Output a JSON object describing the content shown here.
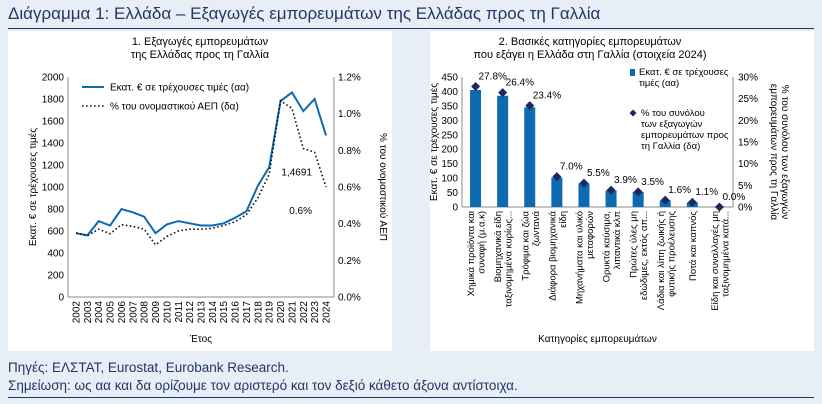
{
  "page": {
    "title": "Διάγραμμα 1: Ελλάδα – Εξαγωγές εμπορευμάτων της Ελλάδας προς τη Γαλλία",
    "source": "Πηγές: ΕΛΣΤΑΤ, Eurostat, Eurobank Research.",
    "note": "Σημείωση: ως αα και δα ορίζουμε τον αριστερό και τον δεξιό κάθετο άξονα αντίστοιχα."
  },
  "colors": {
    "primary": "#0e6ab0",
    "marker": "#1a2a5c",
    "text": "#1f3864"
  },
  "chart_data": [
    {
      "type": "line",
      "title": [
        "1. Εξαγωγές εμπορευμάτων",
        "της Ελλάδας προς τη Γαλλία"
      ],
      "xlabel": "Έτος",
      "ylabel_left": "Εκατ. € σε τρέχουσες τιμές",
      "ylabel_right": "% του ονομαστικού ΑΕΠ",
      "x": [
        "2002",
        "2003",
        "2004",
        "2005",
        "2006",
        "2007",
        "2008",
        "2009",
        "2010",
        "2011",
        "2012",
        "2013",
        "2014",
        "2015",
        "2016",
        "2017",
        "2018",
        "2019",
        "2020",
        "2021",
        "2022",
        "2023",
        "2024"
      ],
      "ylim_left": [
        0,
        2000
      ],
      "ylim_right": [
        0,
        1.2
      ],
      "yticks_left": [
        "0",
        "200",
        "400",
        "600",
        "800",
        "1000",
        "1200",
        "1400",
        "1600",
        "1800",
        "2000"
      ],
      "yticks_right": [
        "0.0%",
        "0.2%",
        "0.4%",
        "0.6%",
        "0.8%",
        "1.0%",
        "1.2%"
      ],
      "legend": "top-left",
      "series": [
        {
          "name": "Εκατ. € σε τρέχουσες τιμές (αα)",
          "axis": "left",
          "style": "solid",
          "values": [
            580,
            560,
            690,
            650,
            800,
            770,
            730,
            580,
            660,
            690,
            670,
            650,
            650,
            670,
            720,
            780,
            1010,
            1180,
            1780,
            1860,
            1690,
            1800,
            1469.1
          ]
        },
        {
          "name": "% του ονομαστικού ΑΕΠ (δα)",
          "axis": "right",
          "style": "dotted",
          "values": [
            0.35,
            0.335,
            0.37,
            0.345,
            0.395,
            0.385,
            0.37,
            0.285,
            0.33,
            0.36,
            0.37,
            0.37,
            0.375,
            0.39,
            0.41,
            0.45,
            0.54,
            0.67,
            1.07,
            1.03,
            0.81,
            0.79,
            0.6
          ]
        }
      ],
      "annotations": [
        {
          "text": "1,4691",
          "series": 0,
          "index": 22
        },
        {
          "text": "0.6%",
          "series": 1,
          "index": 22
        }
      ]
    },
    {
      "type": "bar",
      "title": [
        "2. Βασικές κατηγορίες εμπορευμάτων",
        "που εξάγει η Ελλάδα στη Γαλλία (στοιχεία 2024)"
      ],
      "xlabel": "Κατηγορίες εμπορευμάτων",
      "ylabel_left": "Εκατ. € σε τρέχουσες τιμές",
      "ylabel_right": "% του συνόλου των εξαγωγών εμπορευμάτων προς τη Γαλλία",
      "categories": [
        [
          "Χημικά προϊόντα και",
          "συναφή (μ.α.κ)"
        ],
        [
          "Βιομηχανικά είδη",
          "ταξινομημένα κυρίως..."
        ],
        [
          "Τρόφιμα και ζώα",
          "ζωντανά"
        ],
        [
          "Διάφορα βιομηχανικά",
          "είδη"
        ],
        [
          "Μηχανήματα και υλικό",
          "μεταφορών"
        ],
        [
          "Ορυκτά καύσιμα,",
          "λιπαντικά κλπ"
        ],
        [
          "Πρώτες ύλες μη",
          "εδώδιμες, εκτός απ..."
        ],
        [
          "Λάδια και λίπη ζωικής ή",
          "φυτικής προέλευσης"
        ],
        [
          "Ποτά και καπνός"
        ],
        [
          "Είδη και συναλλαγές μη",
          "ταξινομημένα κατά..."
        ]
      ],
      "ylim_left": [
        0,
        450
      ],
      "ylim_right": [
        0,
        30
      ],
      "yticks_left": [
        "0",
        "50",
        "100",
        "150",
        "200",
        "250",
        "300",
        "350",
        "400",
        "450"
      ],
      "yticks_right": [
        "0%",
        "5%",
        "10%",
        "15%",
        "20%",
        "25%",
        "30%"
      ],
      "legend": "top-right",
      "series": [
        {
          "name": "Εκατ. € σε τρέχουσες τιμές (αα)",
          "axis": "left",
          "style": "bar",
          "values": [
            405,
            385,
            345,
            102,
            82,
            57,
            52,
            23,
            16,
            2
          ]
        },
        {
          "name": "% του συνόλου των εξαγωγών εμπορευμάτων προς τη Γαλλία (δα)",
          "axis": "right",
          "style": "marker",
          "values": [
            27.8,
            26.4,
            23.4,
            7.0,
            5.5,
            3.9,
            3.5,
            1.6,
            1.1,
            0.0
          ]
        }
      ],
      "data_labels": [
        "27.8%",
        "26.4%",
        "23.4%",
        "7.0%",
        "5.5%",
        "3.9%",
        "3.5%",
        "1.6%",
        "1.1%",
        "0.0%"
      ]
    }
  ]
}
